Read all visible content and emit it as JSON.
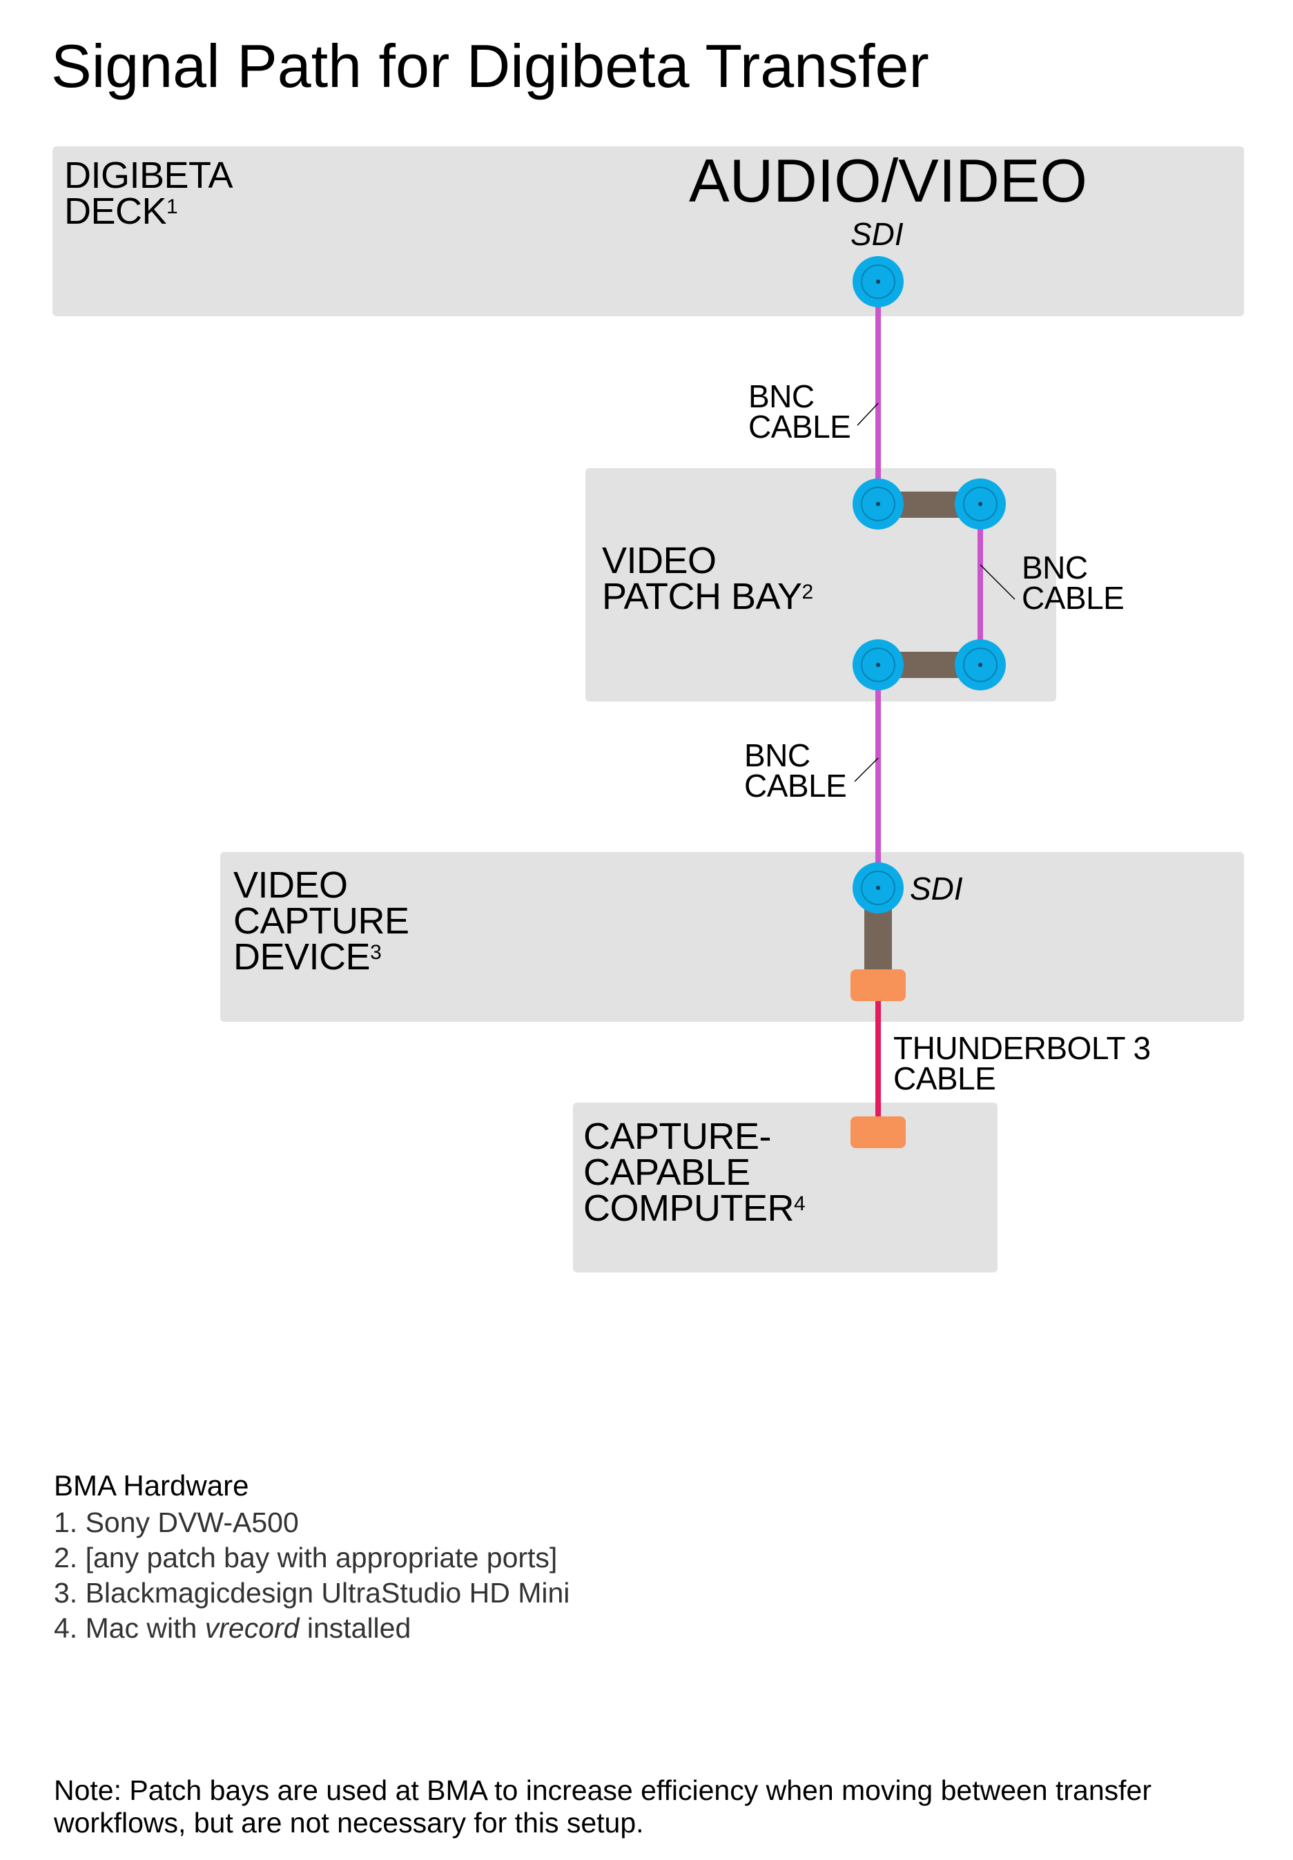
{
  "title": "Signal Path for Digibeta Transfer",
  "boxes": {
    "deck": {
      "line1": "DIGIBETA",
      "line2": "DECK",
      "sup": "1"
    },
    "patch_bay": {
      "line1": "VIDEO",
      "line2": "PATCH BAY",
      "sup": "2"
    },
    "capture_device": {
      "line1": "VIDEO",
      "line2": "CAPTURE",
      "line3": "DEVICE",
      "sup": "3"
    },
    "computer": {
      "line1": "CAPTURE-",
      "line2": "CAPABLE",
      "line3": "COMPUTER",
      "sup": "4"
    }
  },
  "audio_video_label": "AUDIO/VIDEO",
  "ports": {
    "deck_sdi": "SDI",
    "capture_sdi": "SDI"
  },
  "cables": {
    "bnc_1": {
      "line1": "BNC",
      "line2": "CABLE"
    },
    "bnc_2": {
      "line1": "BNC",
      "line2": "CABLE"
    },
    "bnc_3": {
      "line1": "BNC",
      "line2": "CABLE"
    },
    "thunderbolt": {
      "line1": "THUNDERBOLT 3",
      "line2": "CABLE"
    }
  },
  "colors": {
    "box_fill": "#e2e2e2",
    "bnc_connector": "#0aabe6",
    "bnc_cable": "#cc55cc",
    "internal_link": "#756659",
    "thunderbolt_port": "#f79258",
    "thunderbolt_cable": "#e5195e"
  },
  "hardware": {
    "title": "BMA Hardware",
    "items": [
      {
        "prefix": "1. Sony DVW-A500",
        "em": "",
        "suffix": ""
      },
      {
        "prefix": "2. [any patch bay with appropriate ports]",
        "em": "",
        "suffix": ""
      },
      {
        "prefix": "3. Blackmagicdesign UltraStudio HD Mini",
        "em": "",
        "suffix": ""
      },
      {
        "prefix": "4. Mac with ",
        "em": "vrecord",
        "suffix": " installed"
      }
    ]
  },
  "note": "Note: Patch bays are used at BMA to increase efficiency when moving between transfer workflows, but are not necessary for this setup."
}
